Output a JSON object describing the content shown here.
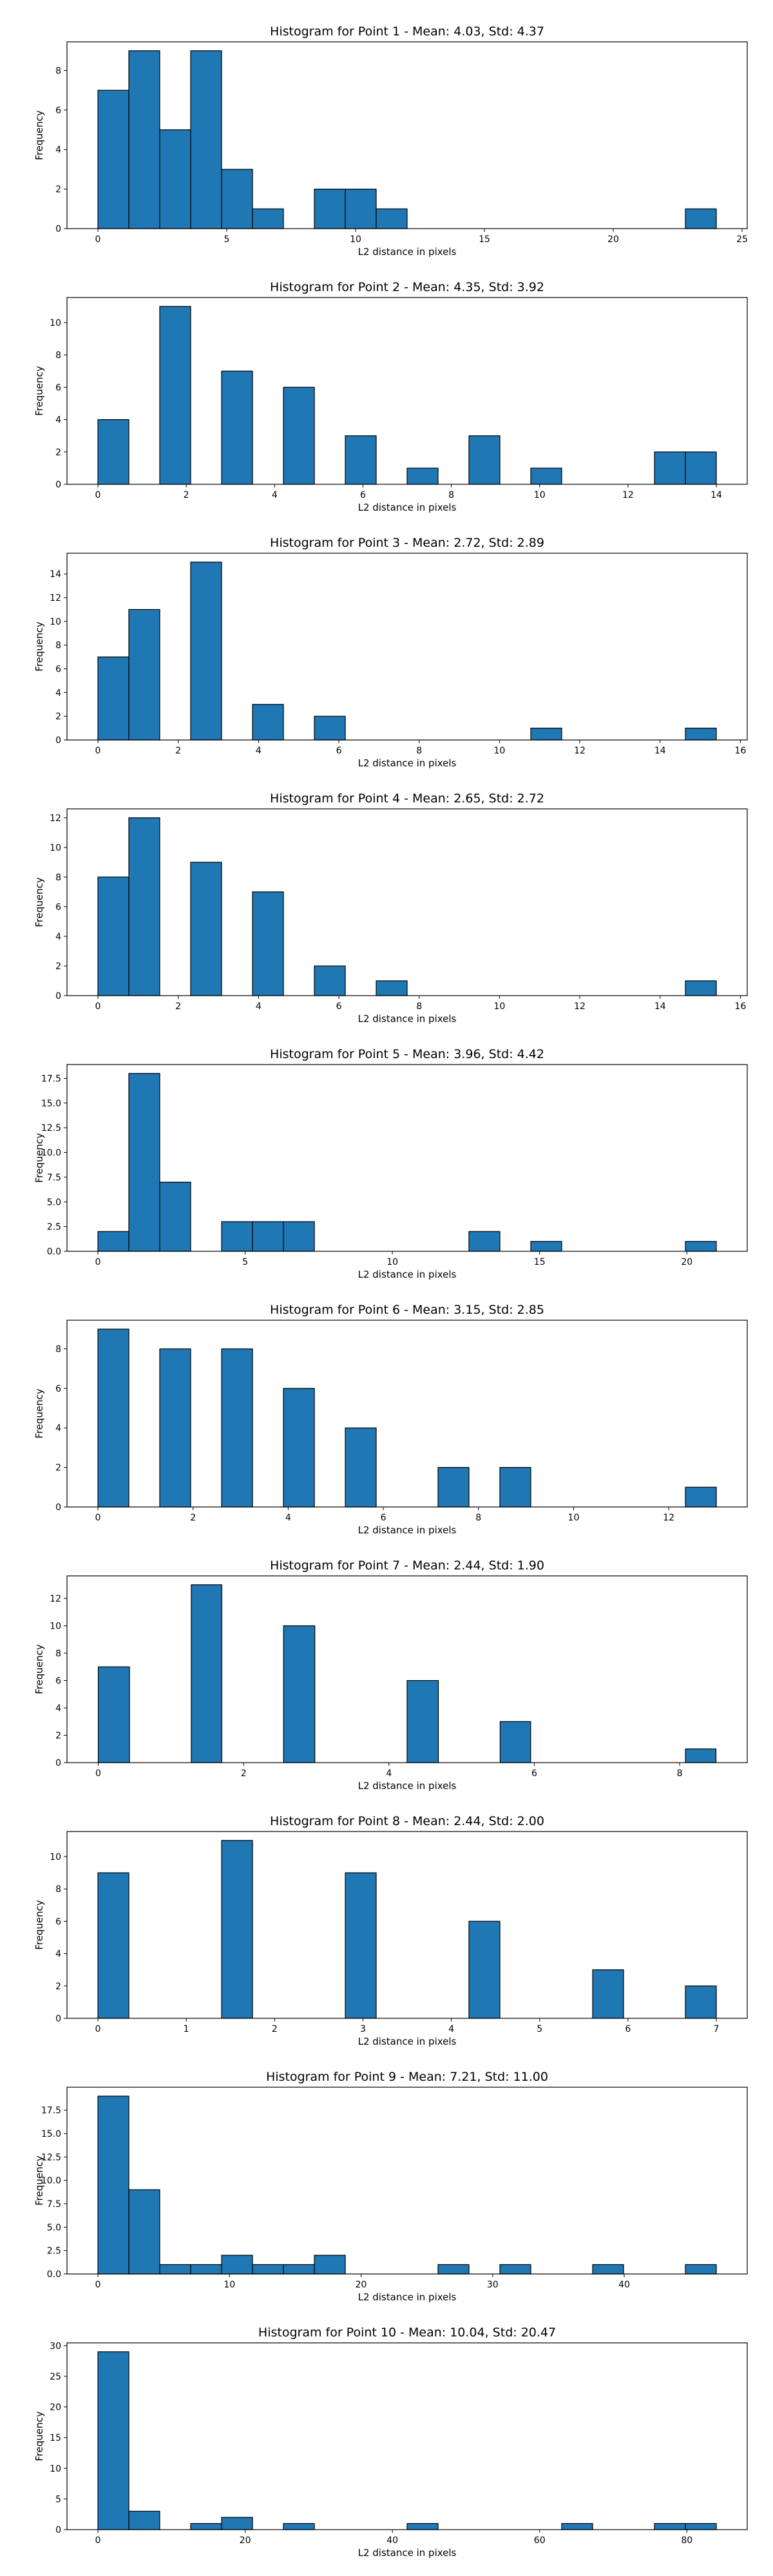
{
  "colors": {
    "bar_fill": "#1f77b4",
    "bar_edge": "#000000",
    "background": "#ffffff"
  },
  "chart_data": [
    {
      "type": "bar",
      "title": "Histogram for Point 1 - Mean: 4.03, Std: 4.37",
      "xlabel": "L2 distance in pixels",
      "ylabel": "Frequency",
      "grid": false,
      "xlim": [
        -1.2,
        25.2
      ],
      "ylim": [
        0,
        9.45
      ],
      "xticks": [
        0,
        5,
        10,
        15,
        20,
        25
      ],
      "yticks": [
        0,
        2,
        4,
        6,
        8
      ],
      "bins": [
        {
          "x0": 0.0,
          "x1": 1.2,
          "count": 7
        },
        {
          "x0": 1.2,
          "x1": 2.4,
          "count": 9
        },
        {
          "x0": 2.4,
          "x1": 3.6,
          "count": 5
        },
        {
          "x0": 3.6,
          "x1": 4.8,
          "count": 9
        },
        {
          "x0": 4.8,
          "x1": 6.0,
          "count": 3
        },
        {
          "x0": 6.0,
          "x1": 7.2,
          "count": 1
        },
        {
          "x0": 8.4,
          "x1": 9.6,
          "count": 2
        },
        {
          "x0": 9.6,
          "x1": 10.8,
          "count": 2
        },
        {
          "x0": 10.8,
          "x1": 12.0,
          "count": 1
        },
        {
          "x0": 22.8,
          "x1": 24.0,
          "count": 1
        }
      ]
    },
    {
      "type": "bar",
      "title": "Histogram for Point 2 - Mean: 4.35, Std: 3.92",
      "xlabel": "L2 distance in pixels",
      "ylabel": "Frequency",
      "grid": false,
      "xlim": [
        -0.7,
        14.7
      ],
      "ylim": [
        0,
        11.55
      ],
      "xticks": [
        0,
        2,
        4,
        6,
        8,
        10,
        12,
        14
      ],
      "yticks": [
        0,
        2,
        4,
        6,
        8,
        10
      ],
      "bins": [
        {
          "x0": 0.0,
          "x1": 0.7,
          "count": 4
        },
        {
          "x0": 1.4,
          "x1": 2.1,
          "count": 11
        },
        {
          "x0": 2.8,
          "x1": 3.5,
          "count": 7
        },
        {
          "x0": 4.2,
          "x1": 4.9,
          "count": 6
        },
        {
          "x0": 5.6,
          "x1": 6.3,
          "count": 3
        },
        {
          "x0": 7.0,
          "x1": 7.7,
          "count": 1
        },
        {
          "x0": 8.4,
          "x1": 9.1,
          "count": 3
        },
        {
          "x0": 9.8,
          "x1": 10.5,
          "count": 1
        },
        {
          "x0": 12.6,
          "x1": 13.3,
          "count": 2
        },
        {
          "x0": 13.3,
          "x1": 14.0,
          "count": 2
        }
      ]
    },
    {
      "type": "bar",
      "title": "Histogram for Point 3 - Mean: 2.72, Std: 2.89",
      "xlabel": "L2 distance in pixels",
      "ylabel": "Frequency",
      "grid": false,
      "xlim": [
        -0.77,
        16.17
      ],
      "ylim": [
        0,
        15.75
      ],
      "xticks": [
        0,
        2,
        4,
        6,
        8,
        10,
        12,
        14,
        16
      ],
      "yticks": [
        0,
        2,
        4,
        6,
        8,
        10,
        12,
        14
      ],
      "bins": [
        {
          "x0": 0.0,
          "x1": 0.77,
          "count": 7
        },
        {
          "x0": 0.77,
          "x1": 1.54,
          "count": 11
        },
        {
          "x0": 2.31,
          "x1": 3.08,
          "count": 15
        },
        {
          "x0": 3.85,
          "x1": 4.62,
          "count": 3
        },
        {
          "x0": 5.39,
          "x1": 6.16,
          "count": 2
        },
        {
          "x0": 10.78,
          "x1": 11.55,
          "count": 1
        },
        {
          "x0": 14.63,
          "x1": 15.4,
          "count": 1
        }
      ]
    },
    {
      "type": "bar",
      "title": "Histogram for Point 4 - Mean: 2.65, Std: 2.72",
      "xlabel": "L2 distance in pixels",
      "ylabel": "Frequency",
      "grid": false,
      "xlim": [
        -0.77,
        16.17
      ],
      "ylim": [
        0,
        12.6
      ],
      "xticks": [
        0,
        2,
        4,
        6,
        8,
        10,
        12,
        14,
        16
      ],
      "yticks": [
        0,
        2,
        4,
        6,
        8,
        10,
        12
      ],
      "bins": [
        {
          "x0": 0.0,
          "x1": 0.77,
          "count": 8
        },
        {
          "x0": 0.77,
          "x1": 1.54,
          "count": 12
        },
        {
          "x0": 2.31,
          "x1": 3.08,
          "count": 9
        },
        {
          "x0": 3.85,
          "x1": 4.62,
          "count": 7
        },
        {
          "x0": 5.39,
          "x1": 6.16,
          "count": 2
        },
        {
          "x0": 6.93,
          "x1": 7.7,
          "count": 1
        },
        {
          "x0": 14.63,
          "x1": 15.4,
          "count": 1
        }
      ]
    },
    {
      "type": "bar",
      "title": "Histogram for Point 5 - Mean: 3.96, Std: 4.42",
      "xlabel": "L2 distance in pixels",
      "ylabel": "Frequency",
      "grid": false,
      "xlim": [
        -1.05,
        22.05
      ],
      "ylim": [
        0,
        18.9
      ],
      "xticks": [
        0,
        5,
        10,
        15,
        20
      ],
      "yticks": [
        0.0,
        2.5,
        5.0,
        7.5,
        10.0,
        12.5,
        15.0,
        17.5
      ],
      "ytick_labels": [
        "0.0",
        "2.5",
        "5.0",
        "7.5",
        "10.0",
        "12.5",
        "15.0",
        "17.5"
      ],
      "bins": [
        {
          "x0": 0.0,
          "x1": 1.05,
          "count": 2
        },
        {
          "x0": 1.05,
          "x1": 2.1,
          "count": 18
        },
        {
          "x0": 2.1,
          "x1": 3.15,
          "count": 7
        },
        {
          "x0": 4.2,
          "x1": 5.25,
          "count": 3
        },
        {
          "x0": 5.25,
          "x1": 6.3,
          "count": 3
        },
        {
          "x0": 6.3,
          "x1": 7.35,
          "count": 3
        },
        {
          "x0": 12.6,
          "x1": 13.65,
          "count": 2
        },
        {
          "x0": 14.7,
          "x1": 15.75,
          "count": 1
        },
        {
          "x0": 19.95,
          "x1": 21.0,
          "count": 1
        }
      ]
    },
    {
      "type": "bar",
      "title": "Histogram for Point 6 - Mean: 3.15, Std: 2.85",
      "xlabel": "L2 distance in pixels",
      "ylabel": "Frequency",
      "grid": false,
      "xlim": [
        -0.65,
        13.65
      ],
      "ylim": [
        0,
        9.45
      ],
      "xticks": [
        0,
        2,
        4,
        6,
        8,
        10,
        12
      ],
      "yticks": [
        0,
        2,
        4,
        6,
        8
      ],
      "bins": [
        {
          "x0": 0.0,
          "x1": 0.65,
          "count": 9
        },
        {
          "x0": 1.3,
          "x1": 1.95,
          "count": 8
        },
        {
          "x0": 2.6,
          "x1": 3.25,
          "count": 8
        },
        {
          "x0": 3.9,
          "x1": 4.55,
          "count": 6
        },
        {
          "x0": 5.2,
          "x1": 5.85,
          "count": 4
        },
        {
          "x0": 7.15,
          "x1": 7.8,
          "count": 2
        },
        {
          "x0": 8.45,
          "x1": 9.1,
          "count": 2
        },
        {
          "x0": 12.35,
          "x1": 13.0,
          "count": 1
        }
      ]
    },
    {
      "type": "bar",
      "title": "Histogram for Point 7 - Mean: 2.44, Std: 1.90",
      "xlabel": "L2 distance in pixels",
      "ylabel": "Frequency",
      "grid": false,
      "xlim": [
        -0.43,
        8.93
      ],
      "ylim": [
        0,
        13.65
      ],
      "xticks": [
        0,
        2,
        4,
        6,
        8
      ],
      "yticks": [
        0,
        2,
        4,
        6,
        8,
        10,
        12
      ],
      "bins": [
        {
          "x0": 0.0,
          "x1": 0.43,
          "count": 7
        },
        {
          "x0": 1.28,
          "x1": 1.7,
          "count": 13
        },
        {
          "x0": 2.55,
          "x1": 2.98,
          "count": 10
        },
        {
          "x0": 4.25,
          "x1": 4.68,
          "count": 6
        },
        {
          "x0": 5.53,
          "x1": 5.95,
          "count": 3
        },
        {
          "x0": 8.08,
          "x1": 8.5,
          "count": 1
        }
      ]
    },
    {
      "type": "bar",
      "title": "Histogram for Point 8 - Mean: 2.44, Std: 2.00",
      "xlabel": "L2 distance in pixels",
      "ylabel": "Frequency",
      "grid": false,
      "xlim": [
        -0.35,
        7.35
      ],
      "ylim": [
        0,
        11.55
      ],
      "xticks": [
        0,
        1,
        2,
        3,
        4,
        5,
        6,
        7
      ],
      "yticks": [
        0,
        2,
        4,
        6,
        8,
        10
      ],
      "bins": [
        {
          "x0": 0.0,
          "x1": 0.35,
          "count": 9
        },
        {
          "x0": 1.4,
          "x1": 1.75,
          "count": 11
        },
        {
          "x0": 2.8,
          "x1": 3.15,
          "count": 9
        },
        {
          "x0": 4.2,
          "x1": 4.55,
          "count": 6
        },
        {
          "x0": 5.6,
          "x1": 5.95,
          "count": 3
        },
        {
          "x0": 6.65,
          "x1": 7.0,
          "count": 2
        }
      ]
    },
    {
      "type": "bar",
      "title": "Histogram for Point 9 - Mean: 7.21, Std: 11.00",
      "xlabel": "L2 distance in pixels",
      "ylabel": "Frequency",
      "grid": false,
      "xlim": [
        -2.35,
        49.35
      ],
      "ylim": [
        0,
        19.95
      ],
      "xticks": [
        0,
        10,
        20,
        30,
        40
      ],
      "yticks": [
        0.0,
        2.5,
        5.0,
        7.5,
        10.0,
        12.5,
        15.0,
        17.5
      ],
      "ytick_labels": [
        "0.0",
        "2.5",
        "5.0",
        "7.5",
        "10.0",
        "12.5",
        "15.0",
        "17.5"
      ],
      "bins": [
        {
          "x0": 0.0,
          "x1": 2.35,
          "count": 19
        },
        {
          "x0": 2.35,
          "x1": 4.7,
          "count": 9
        },
        {
          "x0": 4.7,
          "x1": 7.05,
          "count": 1
        },
        {
          "x0": 7.05,
          "x1": 9.4,
          "count": 1
        },
        {
          "x0": 9.4,
          "x1": 11.75,
          "count": 2
        },
        {
          "x0": 11.75,
          "x1": 14.1,
          "count": 1
        },
        {
          "x0": 14.1,
          "x1": 16.45,
          "count": 1
        },
        {
          "x0": 16.45,
          "x1": 18.8,
          "count": 2
        },
        {
          "x0": 25.85,
          "x1": 28.2,
          "count": 1
        },
        {
          "x0": 30.55,
          "x1": 32.9,
          "count": 1
        },
        {
          "x0": 37.6,
          "x1": 39.95,
          "count": 1
        },
        {
          "x0": 44.65,
          "x1": 47.0,
          "count": 1
        }
      ]
    },
    {
      "type": "bar",
      "title": "Histogram for Point 10 - Mean: 10.04, Std: 20.47",
      "xlabel": "L2 distance in pixels",
      "ylabel": "Frequency",
      "grid": false,
      "xlim": [
        -4.2,
        88.2
      ],
      "ylim": [
        0,
        30.45
      ],
      "xticks": [
        0,
        20,
        40,
        60,
        80
      ],
      "yticks": [
        0,
        5,
        10,
        15,
        20,
        25,
        30
      ],
      "bins": [
        {
          "x0": 0.0,
          "x1": 4.2,
          "count": 29
        },
        {
          "x0": 4.2,
          "x1": 8.4,
          "count": 3
        },
        {
          "x0": 12.6,
          "x1": 16.8,
          "count": 1
        },
        {
          "x0": 16.8,
          "x1": 21.0,
          "count": 2
        },
        {
          "x0": 25.2,
          "x1": 29.4,
          "count": 1
        },
        {
          "x0": 42.0,
          "x1": 46.2,
          "count": 1
        },
        {
          "x0": 63.0,
          "x1": 67.2,
          "count": 1
        },
        {
          "x0": 75.6,
          "x1": 79.8,
          "count": 1
        },
        {
          "x0": 79.8,
          "x1": 84.0,
          "count": 1
        }
      ]
    }
  ]
}
